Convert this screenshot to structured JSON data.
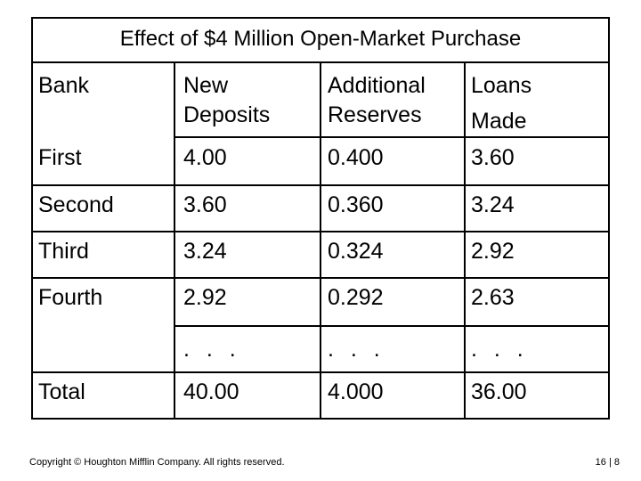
{
  "slide": {
    "title": "Effect of $4 Million Open-Market Purchase"
  },
  "table": {
    "headers": {
      "bank": "Bank",
      "new_deposits_line1": "New",
      "new_deposits_line2": "Deposits",
      "additional_reserves_line1": "Additional",
      "additional_reserves_line2": "Reserves",
      "loans_made_line1": "Loans",
      "loans_made_line2": "Made"
    },
    "rows": [
      {
        "bank": "First",
        "deposits": "4.00",
        "reserves": "0.400",
        "loans": "3.60"
      },
      {
        "bank": "Second",
        "deposits": "3.60",
        "reserves": "0.360",
        "loans": "3.24"
      },
      {
        "bank": "Third",
        "deposits": "3.24",
        "reserves": "0.324",
        "loans": "2.92"
      },
      {
        "bank": "Fourth",
        "deposits": "2.92",
        "reserves": "0.292",
        "loans": "2.63"
      },
      {
        "bank": "",
        "deposits": ". . .",
        "reserves": ". . .",
        "loans": ". . ."
      },
      {
        "bank": "Total",
        "deposits": "40.00",
        "reserves": "4.000",
        "loans": "36.00"
      }
    ]
  },
  "footer": {
    "copyright": "Copyright © Houghton Mifflin Company. All rights reserved.",
    "page": "16 | 8"
  }
}
